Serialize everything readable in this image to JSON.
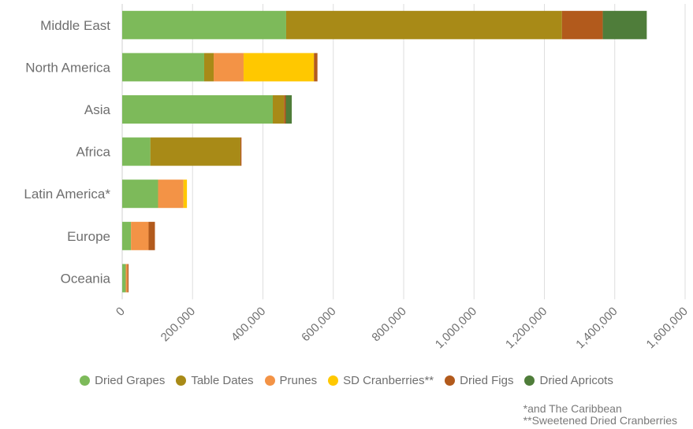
{
  "chart_data": {
    "type": "bar",
    "orientation": "horizontal",
    "stacked": true,
    "categories": [
      "Middle East",
      "North America",
      "Asia",
      "Africa",
      "Latin America*",
      "Europe",
      "Oceania"
    ],
    "series": [
      {
        "name": "Dried Grapes",
        "color": "#7dba5a",
        "values": [
          466000,
          233000,
          428000,
          80000,
          102000,
          25000,
          10000
        ]
      },
      {
        "name": "Table Dates",
        "color": "#a88a17",
        "values": [
          784000,
          27000,
          32000,
          256000,
          0,
          0,
          0
        ]
      },
      {
        "name": "Prunes",
        "color": "#f39346",
        "values": [
          0,
          85000,
          0,
          0,
          72000,
          50000,
          5000
        ]
      },
      {
        "name": "SD Cranberries**",
        "color": "#ffc800",
        "values": [
          0,
          200000,
          0,
          0,
          10000,
          0,
          0
        ]
      },
      {
        "name": "Dried Figs",
        "color": "#b25a1c",
        "values": [
          116000,
          10000,
          5000,
          3000,
          0,
          18000,
          3000
        ]
      },
      {
        "name": "Dried Apricots",
        "color": "#4f7d3a",
        "values": [
          125000,
          0,
          17000,
          0,
          0,
          0,
          0
        ]
      }
    ],
    "xlim": [
      0,
      1600000
    ],
    "xticks": [
      "0",
      "200,000",
      "400,000",
      "600,000",
      "800,000",
      "1,000,000",
      "1,200,000",
      "1,400,000",
      "1,600,000"
    ],
    "grid": true,
    "legend_position": "bottom",
    "xlabel": "",
    "ylabel": ""
  },
  "notes": [
    "*and The Caribbean",
    "**Sweetened Dried Cranberries"
  ]
}
